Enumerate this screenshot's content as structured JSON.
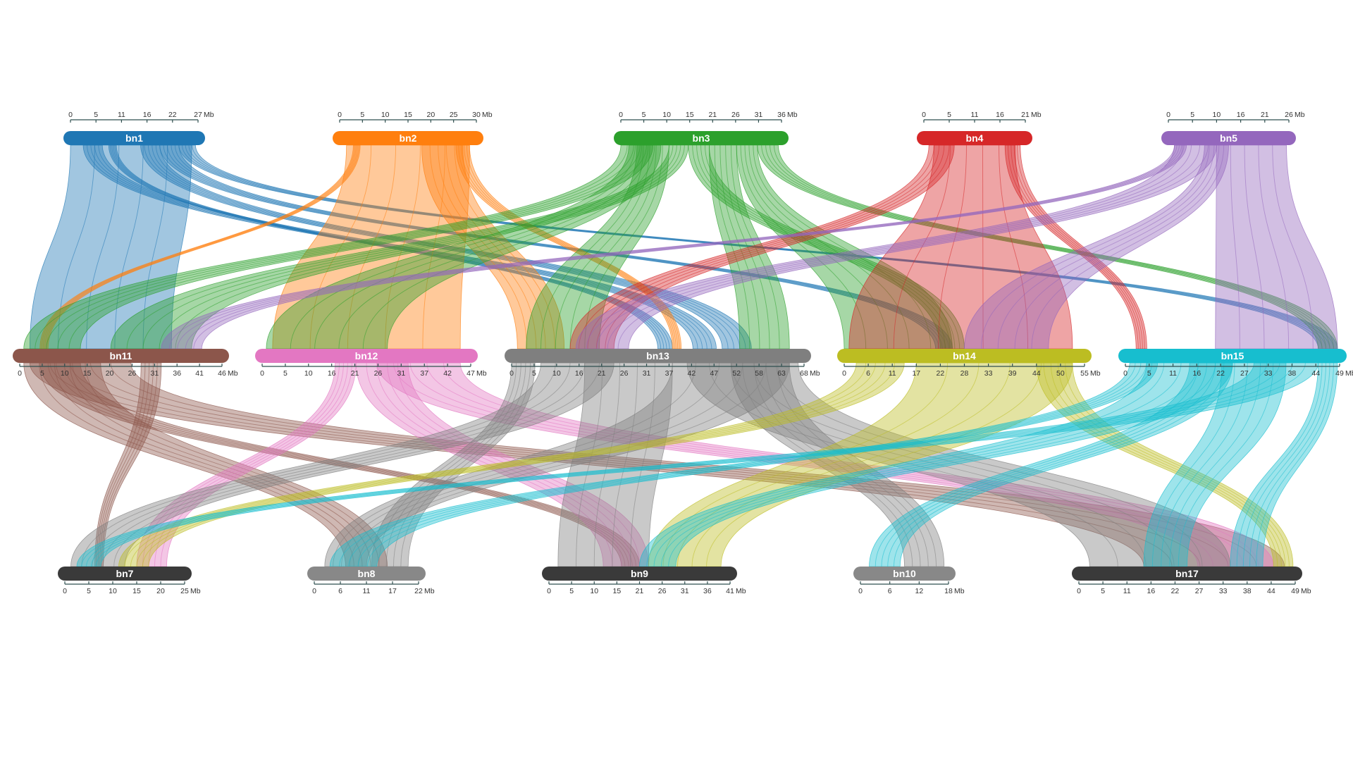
{
  "colors": {
    "bn1": "#1f77b4",
    "bn2": "#ff7f0e",
    "bn3": "#2ca02c",
    "bn4": "#d62728",
    "bn5": "#9467bd",
    "bn11": "#8c564b",
    "bn12": "#e377c2",
    "bn13": "#7f7f7f",
    "bn14": "#bcbd22",
    "bn15": "#17becf",
    "bn7": "#3a3a3a",
    "bn8": "#888888",
    "bn9": "#3a3a3a",
    "bn10": "#888888",
    "bn17": "#3a3a3a"
  },
  "chromosomes": [
    {
      "name": "bn1",
      "ticks": [
        "0",
        "5",
        "11",
        "16",
        "22",
        "27"
      ],
      "unit": "Mb"
    },
    {
      "name": "bn2",
      "ticks": [
        "0",
        "5",
        "10",
        "15",
        "20",
        "25",
        "30"
      ],
      "unit": "Mb"
    },
    {
      "name": "bn3",
      "ticks": [
        "0",
        "5",
        "10",
        "15",
        "21",
        "26",
        "31",
        "36"
      ],
      "unit": "Mb"
    },
    {
      "name": "bn4",
      "ticks": [
        "0",
        "5",
        "11",
        "16",
        "21"
      ],
      "unit": "Mb"
    },
    {
      "name": "bn5",
      "ticks": [
        "0",
        "5",
        "10",
        "16",
        "21",
        "26"
      ],
      "unit": "Mb"
    },
    {
      "name": "bn11",
      "ticks": [
        "0",
        "5",
        "10",
        "15",
        "20",
        "26",
        "31",
        "36",
        "41",
        "46"
      ],
      "unit": "Mb"
    },
    {
      "name": "bn12",
      "ticks": [
        "0",
        "5",
        "10",
        "16",
        "21",
        "26",
        "31",
        "37",
        "42",
        "47"
      ],
      "unit": "Mb"
    },
    {
      "name": "bn13",
      "ticks": [
        "0",
        "5",
        "10",
        "16",
        "21",
        "26",
        "31",
        "37",
        "42",
        "47",
        "52",
        "58",
        "63",
        "68"
      ],
      "unit": "Mb"
    },
    {
      "name": "bn14",
      "ticks": [
        "0",
        "6",
        "11",
        "17",
        "22",
        "28",
        "33",
        "39",
        "44",
        "50",
        "55"
      ],
      "unit": "Mb"
    },
    {
      "name": "bn15",
      "ticks": [
        "0",
        "5",
        "11",
        "16",
        "22",
        "27",
        "33",
        "38",
        "44",
        "49"
      ],
      "unit": "Mb"
    },
    {
      "name": "bn7",
      "ticks": [
        "0",
        "5",
        "10",
        "15",
        "20",
        "25"
      ],
      "unit": "Mb"
    },
    {
      "name": "bn8",
      "ticks": [
        "0",
        "6",
        "11",
        "17",
        "22"
      ],
      "unit": "Mb"
    },
    {
      "name": "bn9",
      "ticks": [
        "0",
        "5",
        "10",
        "15",
        "21",
        "26",
        "31",
        "36",
        "41"
      ],
      "unit": "Mb"
    },
    {
      "name": "bn10",
      "ticks": [
        "0",
        "6",
        "12",
        "18"
      ],
      "unit": "Mb"
    },
    {
      "name": "bn17",
      "ticks": [
        "0",
        "5",
        "11",
        "16",
        "22",
        "27",
        "33",
        "38",
        "44",
        "49"
      ],
      "unit": "Mb"
    }
  ],
  "links": [
    {
      "from": "bn1",
      "fs": 0,
      "fe": 0.95,
      "to": "bn11",
      "ts": 0.05,
      "te": 0.75
    },
    {
      "from": "bn1",
      "fs": 0.1,
      "fe": 0.25,
      "to": "bn13",
      "ts": 0.62,
      "te": 0.7
    },
    {
      "from": "bn1",
      "fs": 0.55,
      "fe": 0.7,
      "to": "bn13",
      "ts": 0.72,
      "te": 0.82
    },
    {
      "from": "bn1",
      "fs": 0.7,
      "fe": 0.85,
      "to": "bn14",
      "ts": 0.38,
      "te": 0.45
    },
    {
      "from": "bn1",
      "fs": 0.85,
      "fe": 0.98,
      "to": "bn15",
      "ts": 0.9,
      "te": 0.99
    },
    {
      "from": "bn1",
      "fs": 0.3,
      "fe": 0.36,
      "to": "bn13",
      "ts": 0.5,
      "te": 0.55
    },
    {
      "from": "bn2",
      "fs": 0.05,
      "fe": 0.95,
      "to": "bn12",
      "ts": 0.05,
      "te": 0.95
    },
    {
      "from": "bn2",
      "fs": 0.6,
      "fe": 0.9,
      "to": "bn13",
      "ts": 0.02,
      "te": 0.18
    },
    {
      "from": "bn2",
      "fs": 0.85,
      "fe": 0.95,
      "to": "bn13",
      "ts": 0.55,
      "te": 0.58
    },
    {
      "from": "bn2",
      "fs": 0.1,
      "fe": 0.15,
      "to": "bn11",
      "ts": 0.1,
      "te": 0.14
    },
    {
      "from": "bn3",
      "fs": 0.0,
      "fe": 0.2,
      "to": "bn11",
      "ts": 0.02,
      "te": 0.3
    },
    {
      "from": "bn3",
      "fs": 0.05,
      "fe": 0.25,
      "to": "bn12",
      "ts": 0.02,
      "te": 0.6
    },
    {
      "from": "bn3",
      "fs": 0.1,
      "fe": 0.3,
      "to": "bn13",
      "ts": 0.05,
      "te": 0.3
    },
    {
      "from": "bn3",
      "fs": 0.3,
      "fe": 0.42,
      "to": "bn11",
      "ts": 0.45,
      "te": 0.85
    },
    {
      "from": "bn3",
      "fs": 0.55,
      "fe": 0.72,
      "to": "bn13",
      "ts": 0.78,
      "te": 0.95
    },
    {
      "from": "bn3",
      "fs": 0.72,
      "fe": 0.85,
      "to": "bn14",
      "ts": 0.0,
      "te": 0.45
    },
    {
      "from": "bn3",
      "fs": 0.85,
      "fe": 0.98,
      "to": "bn15",
      "ts": 0.9,
      "te": 0.99
    },
    {
      "from": "bn3",
      "fs": 0.42,
      "fe": 0.55,
      "to": "bn14",
      "ts": 0.4,
      "te": 0.5
    },
    {
      "from": "bn4",
      "fs": 0.05,
      "fe": 0.3,
      "to": "bn13",
      "ts": 0.2,
      "te": 0.35
    },
    {
      "from": "bn4",
      "fs": 0.1,
      "fe": 0.9,
      "to": "bn14",
      "ts": 0.02,
      "te": 0.95
    },
    {
      "from": "bn4",
      "fs": 0.8,
      "fe": 0.95,
      "to": "bn15",
      "ts": 0.05,
      "te": 0.1
    },
    {
      "from": "bn5",
      "fs": 0.05,
      "fe": 0.4,
      "to": "bn13",
      "ts": 0.22,
      "te": 0.4
    },
    {
      "from": "bn5",
      "fs": 0.3,
      "fe": 0.5,
      "to": "bn14",
      "ts": 0.5,
      "te": 0.85
    },
    {
      "from": "bn5",
      "fs": 0.4,
      "fe": 0.98,
      "to": "bn15",
      "ts": 0.42,
      "te": 0.99
    },
    {
      "from": "bn5",
      "fs": 0.05,
      "fe": 0.15,
      "to": "bn11",
      "ts": 0.7,
      "te": 0.9
    },
    {
      "from": "bn11",
      "fs": 0.02,
      "fe": 0.4,
      "to": "bn8",
      "ts": 0.3,
      "te": 0.7
    },
    {
      "from": "bn11",
      "fs": 0.05,
      "fe": 0.55,
      "to": "bn17",
      "ts": 0.3,
      "te": 0.95
    },
    {
      "from": "bn11",
      "fs": 0.6,
      "fe": 0.7,
      "to": "bn7",
      "ts": 0.25,
      "te": 0.32
    },
    {
      "from": "bn11",
      "fs": 0.1,
      "fe": 0.3,
      "to": "bn9",
      "ts": 0.4,
      "te": 0.5
    },
    {
      "from": "bn12",
      "fs": 0.35,
      "fe": 0.45,
      "to": "bn7",
      "ts": 0.6,
      "te": 0.85
    },
    {
      "from": "bn12",
      "fs": 0.45,
      "fe": 0.7,
      "to": "bn9",
      "ts": 0.3,
      "te": 0.55
    },
    {
      "from": "bn12",
      "fs": 0.55,
      "fe": 0.95,
      "to": "bn17",
      "ts": 0.55,
      "te": 0.9
    },
    {
      "from": "bn13",
      "fs": 0.0,
      "fe": 0.08,
      "to": "bn8",
      "ts": 0.55,
      "te": 0.9
    },
    {
      "from": "bn13",
      "fs": 0.1,
      "fe": 0.35,
      "to": "bn7",
      "ts": 0.05,
      "te": 0.5
    },
    {
      "from": "bn13",
      "fs": 0.25,
      "fe": 0.55,
      "to": "bn9",
      "ts": 0.05,
      "te": 0.55
    },
    {
      "from": "bn13",
      "fs": 0.55,
      "fe": 0.95,
      "to": "bn8",
      "ts": 0.1,
      "te": 0.5
    },
    {
      "from": "bn13",
      "fs": 0.6,
      "fe": 0.98,
      "to": "bn17",
      "ts": 0.05,
      "te": 0.7
    },
    {
      "from": "bn13",
      "fs": 0.75,
      "fe": 0.95,
      "to": "bn10",
      "ts": 0.5,
      "te": 0.95
    },
    {
      "from": "bn14",
      "fs": 0.05,
      "fe": 0.25,
      "to": "bn7",
      "ts": 0.45,
      "te": 0.7
    },
    {
      "from": "bn14",
      "fs": 0.3,
      "fe": 0.95,
      "to": "bn9",
      "ts": 0.55,
      "te": 0.95
    },
    {
      "from": "bn14",
      "fs": 0.8,
      "fe": 0.95,
      "to": "bn17",
      "ts": 0.9,
      "te": 0.99
    },
    {
      "from": "bn15",
      "fs": 0.02,
      "fe": 0.15,
      "to": "bn8",
      "ts": 0.15,
      "te": 0.6
    },
    {
      "from": "bn15",
      "fs": 0.1,
      "fe": 0.5,
      "to": "bn9",
      "ts": 0.5,
      "te": 0.7
    },
    {
      "from": "bn15",
      "fs": 0.3,
      "fe": 0.5,
      "to": "bn10",
      "ts": 0.1,
      "te": 0.45
    },
    {
      "from": "bn15",
      "fs": 0.45,
      "fe": 0.75,
      "to": "bn17",
      "ts": 0.3,
      "te": 0.5
    },
    {
      "from": "bn15",
      "fs": 0.6,
      "fe": 0.9,
      "to": "bn7",
      "ts": 0.1,
      "te": 0.3
    },
    {
      "from": "bn15",
      "fs": 0.9,
      "fe": 0.99,
      "to": "bn17",
      "ts": 0.7,
      "te": 0.85
    }
  ]
}
